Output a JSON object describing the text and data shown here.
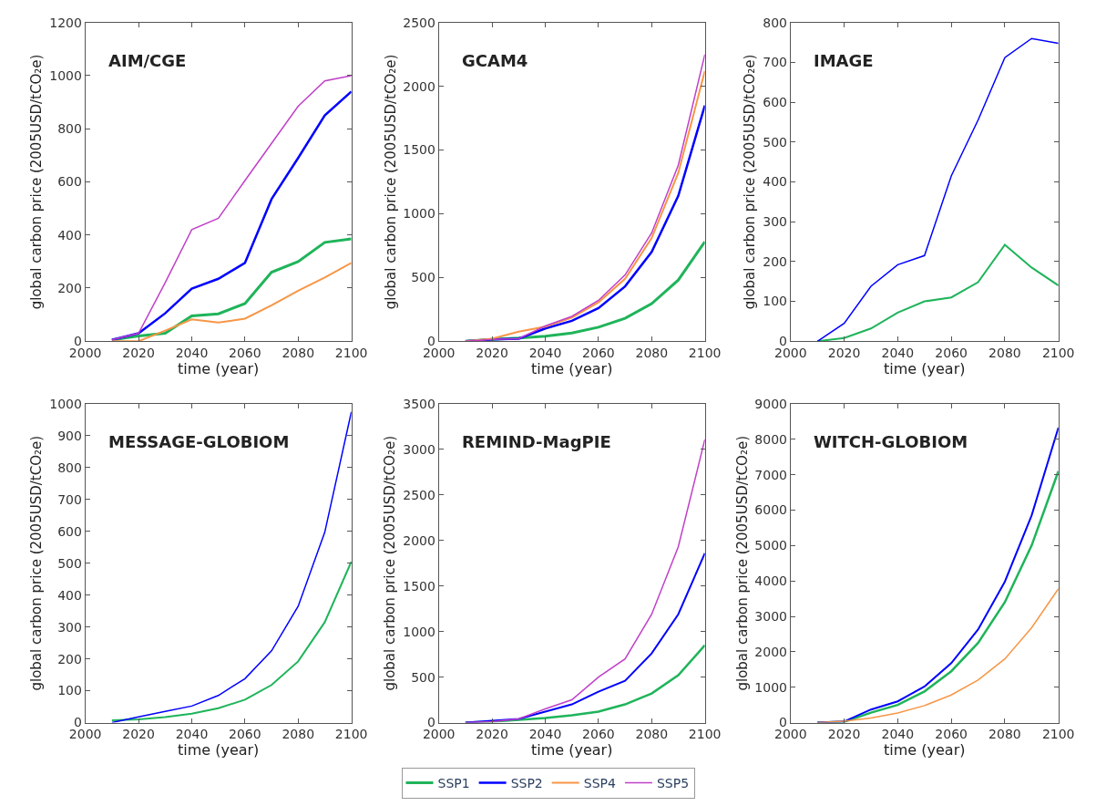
{
  "chart_data": [
    {
      "type": "line",
      "title": "AIM/CGE",
      "xlabel": "time (year)",
      "ylabel": "global carbon price (2005USD/tCO₂e)",
      "x": [
        2010,
        2020,
        2030,
        2040,
        2050,
        2060,
        2070,
        2080,
        2090,
        2100
      ],
      "xlim": [
        2000,
        2100
      ],
      "xticks": [
        2000,
        2020,
        2040,
        2060,
        2080,
        2100
      ],
      "ylim": [
        0,
        1200
      ],
      "yticks": [
        0,
        200,
        400,
        600,
        800,
        1000,
        1200
      ],
      "legend": "bottom",
      "series": [
        {
          "name": "SSP1",
          "color": "#1fb45a",
          "values": [
            5,
            20,
            30,
            95,
            103,
            142,
            260,
            300,
            372,
            385
          ]
        },
        {
          "name": "SSP2",
          "color": "#0000ff",
          "values": [
            5,
            30,
            105,
            198,
            235,
            295,
            535,
            690,
            850,
            940
          ]
        },
        {
          "name": "SSP4",
          "color": "#f79646",
          "values": [
            0,
            0,
            40,
            82,
            70,
            85,
            135,
            190,
            240,
            295
          ]
        },
        {
          "name": "SSP5",
          "color": "#c040c8",
          "values": [
            5,
            30,
            220,
            420,
            463,
            605,
            745,
            885,
            980,
            1000
          ]
        }
      ]
    },
    {
      "type": "line",
      "title": "GCAM4",
      "xlabel": "time (year)",
      "ylabel": "global carbon price (2005USD/tCO₂e)",
      "x": [
        2010,
        2020,
        2030,
        2040,
        2050,
        2060,
        2070,
        2080,
        2090,
        2100
      ],
      "xlim": [
        2000,
        2100
      ],
      "xticks": [
        2000,
        2020,
        2040,
        2060,
        2080,
        2100
      ],
      "ylim": [
        0,
        2500
      ],
      "yticks": [
        0,
        500,
        1000,
        1500,
        2000,
        2500
      ],
      "legend": "bottom",
      "series": [
        {
          "name": "SSP1",
          "color": "#1fb45a",
          "values": [
            0,
            15,
            25,
            40,
            65,
            110,
            180,
            295,
            480,
            780
          ]
        },
        {
          "name": "SSP2",
          "color": "#0000ff",
          "values": [
            0,
            15,
            20,
            100,
            160,
            260,
            430,
            700,
            1140,
            1850
          ]
        },
        {
          "name": "SSP4",
          "color": "#f79646",
          "values": [
            0,
            20,
            75,
            115,
            185,
            305,
            490,
            810,
            1320,
            2120
          ]
        },
        {
          "name": "SSP5",
          "color": "#c040c8",
          "values": [
            0,
            15,
            20,
            120,
            195,
            320,
            520,
            850,
            1380,
            2250
          ]
        }
      ]
    },
    {
      "type": "line",
      "title": "IMAGE",
      "xlabel": "time (year)",
      "ylabel": "global carbon price (2005USD/tCO₂e)",
      "x": [
        2010,
        2020,
        2030,
        2040,
        2050,
        2060,
        2070,
        2080,
        2090,
        2100
      ],
      "xlim": [
        2000,
        2100
      ],
      "xticks": [
        2000,
        2020,
        2040,
        2060,
        2080,
        2100
      ],
      "ylim": [
        0,
        800
      ],
      "yticks": [
        0,
        100,
        200,
        300,
        400,
        500,
        600,
        700,
        800
      ],
      "legend": "bottom",
      "series": [
        {
          "name": "SSP1",
          "color": "#1fb45a",
          "values": [
            0,
            8,
            32,
            72,
            100,
            110,
            148,
            242,
            185,
            140
          ]
        },
        {
          "name": "SSP2",
          "color": "#0000ff",
          "values": [
            0,
            45,
            138,
            192,
            215,
            415,
            555,
            712,
            760,
            748
          ]
        }
      ]
    },
    {
      "type": "line",
      "title": "MESSAGE-GLOBIOM",
      "xlabel": "time (year)",
      "ylabel": "global carbon price (2005USD/tCO₂e)",
      "x": [
        2010,
        2020,
        2030,
        2040,
        2050,
        2060,
        2070,
        2080,
        2090,
        2100
      ],
      "xlim": [
        2000,
        2100
      ],
      "xticks": [
        2000,
        2020,
        2040,
        2060,
        2080,
        2100
      ],
      "ylim": [
        0,
        1000
      ],
      "yticks": [
        0,
        100,
        200,
        300,
        400,
        500,
        600,
        700,
        800,
        900,
        1000
      ],
      "legend": "bottom",
      "series": [
        {
          "name": "SSP1",
          "color": "#1fb45a",
          "values": [
            7,
            10,
            17,
            28,
            45,
            72,
            118,
            192,
            315,
            505
          ]
        },
        {
          "name": "SSP2",
          "color": "#0000ff",
          "values": [
            0,
            18,
            35,
            52,
            85,
            138,
            225,
            365,
            597,
            975
          ]
        }
      ]
    },
    {
      "type": "line",
      "title": "REMIND-MagPIE",
      "xlabel": "time (year)",
      "ylabel": "global carbon price (2005USD/tCO₂e)",
      "x": [
        2010,
        2020,
        2030,
        2040,
        2050,
        2060,
        2070,
        2080,
        2090,
        2100
      ],
      "xlim": [
        2000,
        2100
      ],
      "xticks": [
        2000,
        2020,
        2040,
        2060,
        2080,
        2100
      ],
      "ylim": [
        0,
        3500
      ],
      "yticks": [
        0,
        500,
        1000,
        1500,
        2000,
        2500,
        3000,
        3500
      ],
      "legend": "bottom",
      "series": [
        {
          "name": "SSP1",
          "color": "#1fb45a",
          "values": [
            0,
            10,
            30,
            50,
            80,
            120,
            200,
            320,
            520,
            850
          ]
        },
        {
          "name": "SSP2",
          "color": "#0000ff",
          "values": [
            0,
            20,
            40,
            120,
            200,
            340,
            460,
            760,
            1190,
            1860
          ]
        },
        {
          "name": "SSP5",
          "color": "#c040c8",
          "values": [
            0,
            10,
            40,
            150,
            250,
            500,
            700,
            1190,
            1930,
            3110
          ]
        }
      ]
    },
    {
      "type": "line",
      "title": "WITCH-GLOBIOM",
      "xlabel": "time (year)",
      "ylabel": "global carbon price (2005USD/tCO₂e)",
      "x": [
        2010,
        2020,
        2030,
        2040,
        2050,
        2060,
        2070,
        2080,
        2090,
        2100
      ],
      "xlim": [
        2000,
        2100
      ],
      "xticks": [
        2000,
        2020,
        2040,
        2060,
        2080,
        2100
      ],
      "ylim": [
        0,
        9000
      ],
      "yticks": [
        0,
        1000,
        2000,
        3000,
        4000,
        5000,
        6000,
        7000,
        8000,
        9000
      ],
      "legend": "bottom",
      "series": [
        {
          "name": "SSP1",
          "color": "#1fb45a",
          "values": [
            0,
            20,
            280,
            500,
            880,
            1450,
            2250,
            3400,
            5000,
            7100
          ]
        },
        {
          "name": "SSP2",
          "color": "#0000ff",
          "values": [
            0,
            30,
            370,
            600,
            1020,
            1680,
            2630,
            3980,
            5850,
            8330
          ]
        },
        {
          "name": "SSP4",
          "color": "#f79646",
          "values": [
            0,
            40,
            130,
            270,
            480,
            780,
            1200,
            1800,
            2680,
            3780
          ]
        }
      ]
    }
  ]
}
